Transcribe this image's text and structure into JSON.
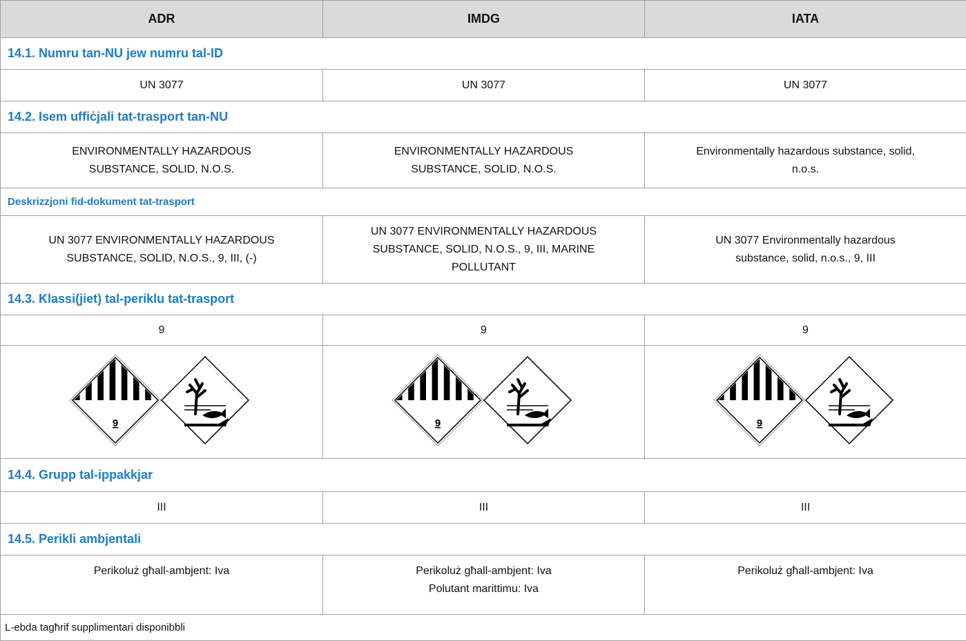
{
  "header": [
    "ADR",
    "IMDG",
    "IATA"
  ],
  "sections": [
    {
      "title": "14.1. Numru tan-NU jew numru tal-ID",
      "rows": [
        [
          [
            "UN 3077"
          ],
          [
            "UN 3077"
          ],
          [
            "UN 3077"
          ]
        ]
      ]
    },
    {
      "title": "14.2. Isem uffiċjali tat-trasport tan-NU",
      "rows": [
        [
          [
            "ENVIRONMENTALLY HAZARDOUS",
            "SUBSTANCE, SOLID, N.O.S."
          ],
          [
            "ENVIRONMENTALLY HAZARDOUS",
            "SUBSTANCE, SOLID, N.O.S."
          ],
          [
            "Environmentally hazardous substance, solid,",
            "n.o.s."
          ]
        ]
      ]
    },
    {
      "subtitle": "Deskrizzjoni fid-dokument tat-trasport",
      "rows": [
        [
          [
            "UN 3077 ENVIRONMENTALLY HAZARDOUS",
            "SUBSTANCE, SOLID, N.O.S., 9, III, (-)"
          ],
          [
            "UN 3077 ENVIRONMENTALLY HAZARDOUS",
            "SUBSTANCE, SOLID, N.O.S., 9, III, MARINE",
            "POLLUTANT"
          ],
          [
            "UN 3077 Environmentally hazardous",
            "substance, solid, n.o.s., 9, III"
          ]
        ]
      ]
    },
    {
      "title": "14.3. Klassi(jiet) tal-periklu tat-trasport",
      "rows": [
        [
          [
            "9"
          ],
          [
            "9"
          ],
          [
            "9"
          ]
        ]
      ],
      "pictograms": [
        {
          "label": "9"
        },
        {
          "label": "9"
        },
        {
          "label": "9"
        }
      ]
    },
    {
      "title": "14.4. Grupp tal-ippakkjar",
      "rows": [
        [
          [
            "III"
          ],
          [
            "III"
          ],
          [
            "III"
          ]
        ]
      ]
    },
    {
      "title": "14.5. Perikli ambjentali",
      "rows": [
        [
          [
            "Perikoluż għall-ambjent: Iva"
          ],
          [
            "Perikoluż għall-ambjent: Iva",
            "Polutant marittimu: Iva"
          ],
          [
            "Perikoluż għall-ambjent: Iva"
          ]
        ]
      ]
    }
  ],
  "footer": "L-ebda tagħrif supplimentari disponibbli"
}
